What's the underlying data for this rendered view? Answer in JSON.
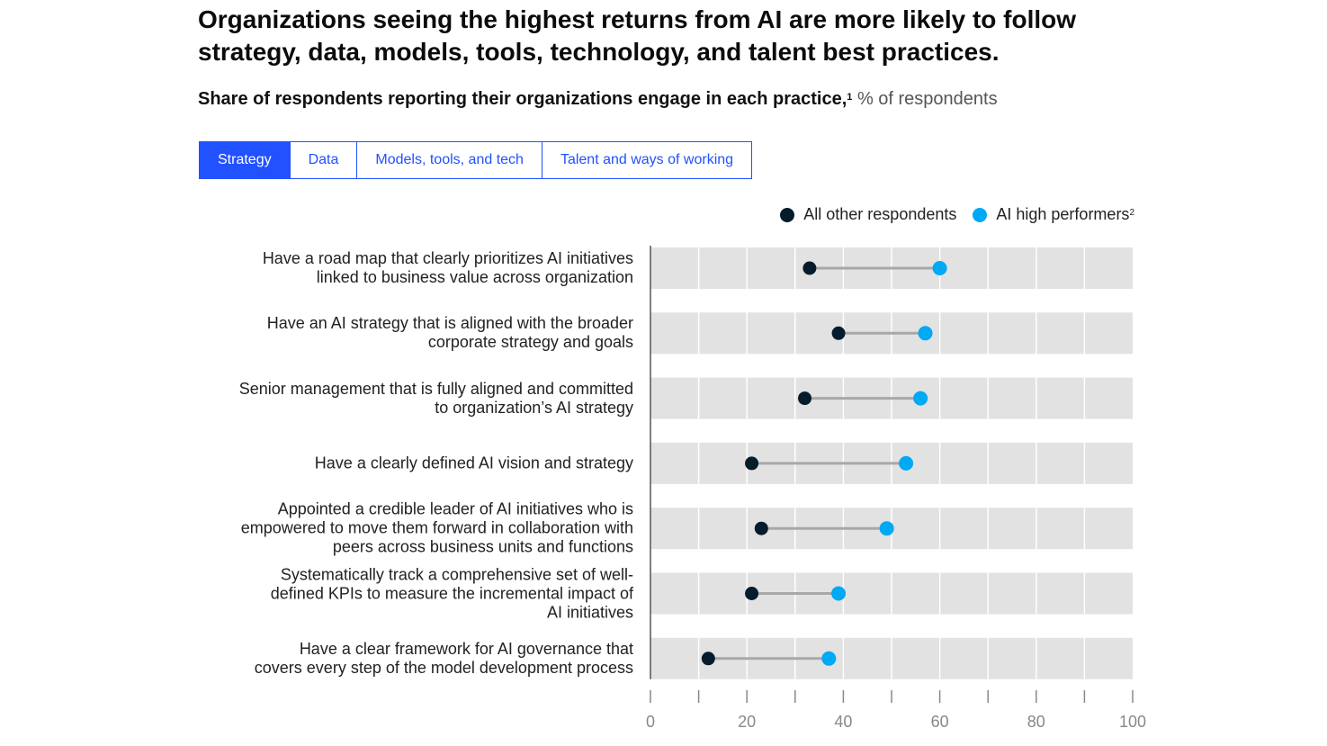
{
  "title": "Organizations seeing the highest returns from AI are more likely to follow strategy, data, models, tools, technology, and talent best practices.",
  "subtitle": {
    "strong": "Share of respondents reporting their organizations engage in each practice,",
    "footnote": "1",
    "unit": " % of respondents"
  },
  "tabs": [
    {
      "label": "Strategy",
      "active": true
    },
    {
      "label": "Data",
      "active": false
    },
    {
      "label": "Models, tools, and tech",
      "active": false
    },
    {
      "label": "Talent and ways of working",
      "active": false
    }
  ],
  "legend": {
    "others": {
      "label": "All other respondents",
      "color": "#051c2c"
    },
    "high": {
      "label": "AI high performers",
      "footnote": "2",
      "color": "#00a9f4"
    }
  },
  "chart_data": {
    "type": "dumbbell",
    "xlim": [
      0,
      100
    ],
    "xticks": [
      0,
      20,
      40,
      60,
      80,
      100
    ],
    "grid": true,
    "legend_position": "top-right",
    "categories": [
      "Have a road map that clearly prioritizes AI initiatives\nlinked to business value across organization",
      "Have an AI strategy that is aligned with the broader\ncorporate strategy and goals",
      "Senior management that is fully aligned and committed\nto organization’s AI strategy",
      "Have a clearly defined AI vision and strategy",
      "Appointed a credible leader of AI initiatives who is\nempowered to move them forward in collaboration with\npeers across business units and functions",
      "Systematically track a comprehensive set of well-\ndefined KPIs to measure the incremental impact of\nAI initiatives",
      "Have a clear framework for AI governance that\ncovers every step of the model development process"
    ],
    "series": [
      {
        "name": "All other respondents",
        "color": "#051c2c",
        "values": [
          33,
          39,
          32,
          21,
          23,
          21,
          12
        ]
      },
      {
        "name": "AI high performers",
        "color": "#00a9f4",
        "values": [
          60,
          57,
          56,
          53,
          49,
          39,
          37
        ]
      }
    ]
  }
}
